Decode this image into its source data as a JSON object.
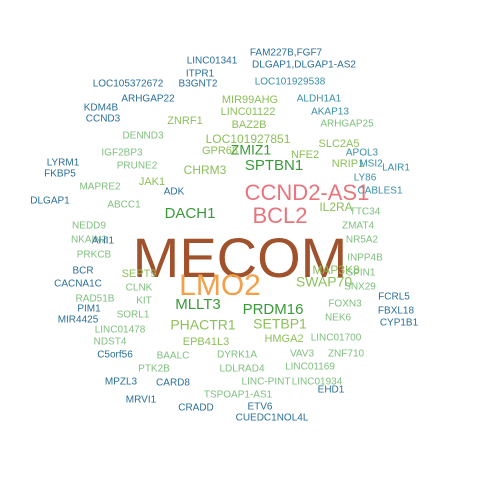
{
  "colors": {
    "darkest": "#a0522d",
    "orange": "#f2a04a",
    "salmon": "#e8747c",
    "green": "#3a9a3a",
    "light_green": "#8cbf5a",
    "olive": "#7fbf7f",
    "teal": "#3a8fa6",
    "blue": "#2a6f97"
  },
  "words": [
    {
      "text": "MECOM",
      "color": "#a0522d"
    },
    {
      "text": "LMO2",
      "color": "#f2a04a"
    },
    {
      "text": "CCND2-AS1",
      "color": "#e8747c"
    },
    {
      "text": "BCL2",
      "color": "#e8747c"
    },
    {
      "text": "DACH1",
      "color": "#3a9a3a"
    },
    {
      "text": "MLLT3",
      "color": "#3a9a3a"
    },
    {
      "text": "PRDM16",
      "color": "#3a9a3a"
    },
    {
      "text": "SPTBN1",
      "color": "#3a9a3a"
    },
    {
      "text": "ZMIZ1",
      "color": "#3a9a3a"
    },
    {
      "text": "SWAP70",
      "color": "#8cbf5a"
    },
    {
      "text": "SETBP1",
      "color": "#8cbf5a"
    },
    {
      "text": "PHACTR1",
      "color": "#8cbf5a"
    },
    {
      "text": "IL2RA",
      "color": "#8cbf5a"
    },
    {
      "text": "MAP3K8",
      "color": "#8cbf5a"
    },
    {
      "text": "LOC101927851",
      "color": "#8cbf5a"
    },
    {
      "text": "CHRM3",
      "color": "#8cbf5a"
    },
    {
      "text": "NFE2",
      "color": "#8cbf5a"
    },
    {
      "text": "GPR68",
      "color": "#8cbf5a"
    },
    {
      "text": "HMGA2",
      "color": "#8cbf5a"
    },
    {
      "text": "EPB41L3",
      "color": "#8cbf5a"
    },
    {
      "text": "SEPT9",
      "color": "#8cbf5a"
    },
    {
      "text": "JAK1",
      "color": "#8cbf5a"
    },
    {
      "text": "NRIP1",
      "color": "#8cbf5a"
    },
    {
      "text": "SLC2A5",
      "color": "#8cbf5a"
    },
    {
      "text": "ZNRF1",
      "color": "#8cbf5a"
    },
    {
      "text": "LINC01122",
      "color": "#8cbf5a"
    },
    {
      "text": "BAZ2B",
      "color": "#8cbf5a"
    },
    {
      "text": "MIR99AHG",
      "color": "#8cbf5a"
    },
    {
      "text": "ARHGAP25",
      "color": "#7fbf7f"
    },
    {
      "text": "PRUNE2",
      "color": "#7fbf7f"
    },
    {
      "text": "ABCC1",
      "color": "#7fbf7f"
    },
    {
      "text": "CLNK",
      "color": "#7fbf7f"
    },
    {
      "text": "KIT",
      "color": "#7fbf7f"
    },
    {
      "text": "SORL1",
      "color": "#7fbf7f"
    },
    {
      "text": "FOXN3",
      "color": "#7fbf7f"
    },
    {
      "text": "NEK6",
      "color": "#7fbf7f"
    },
    {
      "text": "LINC01700",
      "color": "#7fbf7f"
    },
    {
      "text": "VAV3",
      "color": "#7fbf7f"
    },
    {
      "text": "ZNF710",
      "color": "#7fbf7f"
    },
    {
      "text": "LINC01169",
      "color": "#7fbf7f"
    },
    {
      "text": "LINC01934",
      "color": "#7fbf7f"
    },
    {
      "text": "DYRK1A",
      "color": "#7fbf7f"
    },
    {
      "text": "BAALC",
      "color": "#7fbf7f"
    },
    {
      "text": "LDLRAD4",
      "color": "#7fbf7f"
    },
    {
      "text": "LINC-PINT",
      "color": "#7fbf7f"
    },
    {
      "text": "TSPOAP1-AS1",
      "color": "#7fbf7f"
    },
    {
      "text": "PTK2B",
      "color": "#7fbf7f"
    },
    {
      "text": "INPP4B",
      "color": "#7fbf7f"
    },
    {
      "text": "SPIN1",
      "color": "#7fbf7f"
    },
    {
      "text": "SNX29",
      "color": "#7fbf7f"
    },
    {
      "text": "NR5A2",
      "color": "#7fbf7f"
    },
    {
      "text": "ZMAT4",
      "color": "#7fbf7f"
    },
    {
      "text": "TTC34",
      "color": "#7fbf7f"
    },
    {
      "text": "MAPRE2",
      "color": "#7fbf7f"
    },
    {
      "text": "IGF2BP3",
      "color": "#7fbf7f"
    },
    {
      "text": "DENND3",
      "color": "#7fbf7f"
    },
    {
      "text": "NEDD9",
      "color": "#7fbf7f"
    },
    {
      "text": "NKAIN2",
      "color": "#7fbf7f"
    },
    {
      "text": "PRKCB",
      "color": "#7fbf7f"
    },
    {
      "text": "RAD51B",
      "color": "#7fbf7f"
    },
    {
      "text": "LINC01478",
      "color": "#7fbf7f"
    },
    {
      "text": "NDST4",
      "color": "#7fbf7f"
    },
    {
      "text": "LOC101929538",
      "color": "#3a8fa6"
    },
    {
      "text": "ALDH1A1",
      "color": "#3a8fa6"
    },
    {
      "text": "AKAP13",
      "color": "#3a8fa6"
    },
    {
      "text": "APOL3",
      "color": "#3a8fa6"
    },
    {
      "text": "MSI2",
      "color": "#3a8fa6"
    },
    {
      "text": "LAIR1",
      "color": "#3a8fa6"
    },
    {
      "text": "LY86",
      "color": "#3a8fa6"
    },
    {
      "text": "CABLES1",
      "color": "#3a8fa6"
    },
    {
      "text": "FCRL5",
      "color": "#2a6f97"
    },
    {
      "text": "FBXL18",
      "color": "#2a6f97"
    },
    {
      "text": "CYP1B1",
      "color": "#2a6f97"
    },
    {
      "text": "EHD1",
      "color": "#2a6f97"
    },
    {
      "text": "ETV6",
      "color": "#2a6f97"
    },
    {
      "text": "CUEDC1NOL4L",
      "color": "#2a6f97"
    },
    {
      "text": "CRADD",
      "color": "#2a6f97"
    },
    {
      "text": "CARD8",
      "color": "#2a6f97"
    },
    {
      "text": "MRVI1",
      "color": "#2a6f97"
    },
    {
      "text": "MPZL3",
      "color": "#2a6f97"
    },
    {
      "text": "C5orf56",
      "color": "#2a6f97"
    },
    {
      "text": "MIR4425",
      "color": "#2a6f97"
    },
    {
      "text": "PIM1",
      "color": "#2a6f97"
    },
    {
      "text": "CACNA1C",
      "color": "#2a6f97"
    },
    {
      "text": "BCR",
      "color": "#2a6f97"
    },
    {
      "text": "AHI1",
      "color": "#2a6f97"
    },
    {
      "text": "DLGAP1",
      "color": "#2a6f97"
    },
    {
      "text": "FKBP5",
      "color": "#2a6f97"
    },
    {
      "text": "LYRM1",
      "color": "#2a6f97"
    },
    {
      "text": "ADK",
      "color": "#2a6f97"
    },
    {
      "text": "CCND3",
      "color": "#2a6f97"
    },
    {
      "text": "KDM4B",
      "color": "#2a6f97"
    },
    {
      "text": "ARHGAP22",
      "color": "#2a6f97"
    },
    {
      "text": "LOC105372672",
      "color": "#2a6f97"
    },
    {
      "text": "B3GNT2",
      "color": "#2a6f97"
    },
    {
      "text": "ITPR1",
      "color": "#2a6f97"
    },
    {
      "text": "LINC01341",
      "color": "#2a6f97"
    },
    {
      "text": "FAM227B,FGF7",
      "color": "#2a6f97"
    },
    {
      "text": "DLGAP1,DLGAP1-AS2",
      "color": "#2a6f97"
    }
  ]
}
